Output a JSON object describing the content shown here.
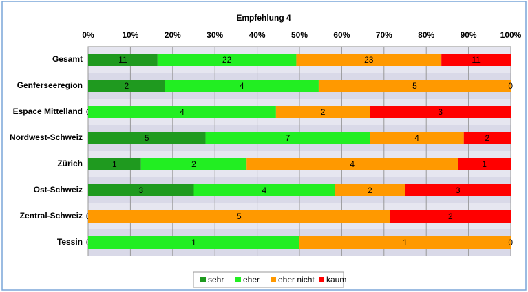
{
  "chart_data": {
    "type": "bar",
    "orientation": "horizontal",
    "stacking": "percent",
    "title": "Empfehlung 4",
    "categories": [
      "Gesamt",
      "Genferseeregion",
      "Espace Mittelland",
      "Nordwest-Schweiz",
      "Zürich",
      "Ost-Schweiz",
      "Zentral-Schweiz",
      "Tessin"
    ],
    "series": [
      {
        "name": "sehr",
        "color": "#1f9a1f",
        "values": [
          11,
          2,
          0,
          5,
          1,
          3,
          0,
          0
        ]
      },
      {
        "name": "eher",
        "color": "#22ee22",
        "values": [
          22,
          4,
          4,
          7,
          2,
          4,
          0,
          1
        ]
      },
      {
        "name": "eher nicht",
        "color": "#ff9900",
        "values": [
          23,
          5,
          2,
          4,
          4,
          2,
          5,
          1
        ]
      },
      {
        "name": "kaum",
        "color": "#ff0000",
        "values": [
          11,
          0,
          3,
          2,
          1,
          3,
          2,
          0
        ]
      }
    ],
    "xlim": [
      0,
      100
    ],
    "xticks": [
      {
        "value": 0,
        "label": "0%"
      },
      {
        "value": 10,
        "label": "10%"
      },
      {
        "value": 20,
        "label": "20%"
      },
      {
        "value": 30,
        "label": "30%"
      },
      {
        "value": 40,
        "label": "40%"
      },
      {
        "value": 50,
        "label": "50%"
      },
      {
        "value": 60,
        "label": "60%"
      },
      {
        "value": 70,
        "label": "70%"
      },
      {
        "value": 80,
        "label": "80%"
      },
      {
        "value": 90,
        "label": "90%"
      },
      {
        "value": 100,
        "label": "100%"
      }
    ],
    "grid": true,
    "legend": "bottom"
  }
}
